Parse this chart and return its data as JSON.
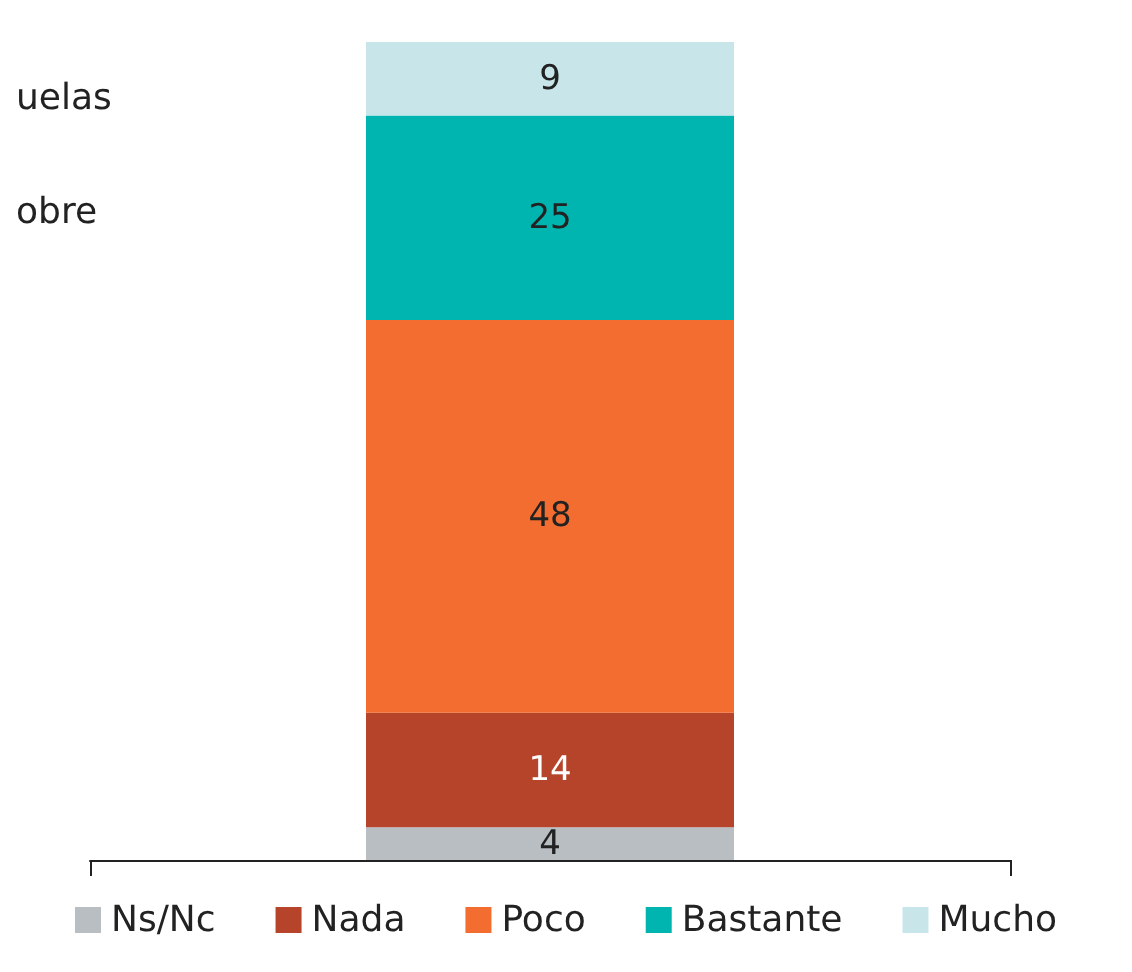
{
  "chart_data": {
    "type": "bar",
    "stacked": true,
    "categories": [
      null
    ],
    "series": [
      {
        "name": "Ns/Nc",
        "color": "#b9bec3",
        "values": [
          4
        ]
      },
      {
        "name": "Nada",
        "color": "#b5442a",
        "values": [
          14
        ]
      },
      {
        "name": "Poco",
        "color": "#f26d2f",
        "values": [
          48
        ]
      },
      {
        "name": "Bastante",
        "color": "#00b5b0",
        "values": [
          25
        ]
      },
      {
        "name": "Mucho",
        "color": "#c8e6e9",
        "values": [
          9
        ]
      }
    ],
    "data_labels": true,
    "legend": "bottom",
    "grid": false,
    "annotations": [
      "uelas",
      "obre"
    ]
  }
}
